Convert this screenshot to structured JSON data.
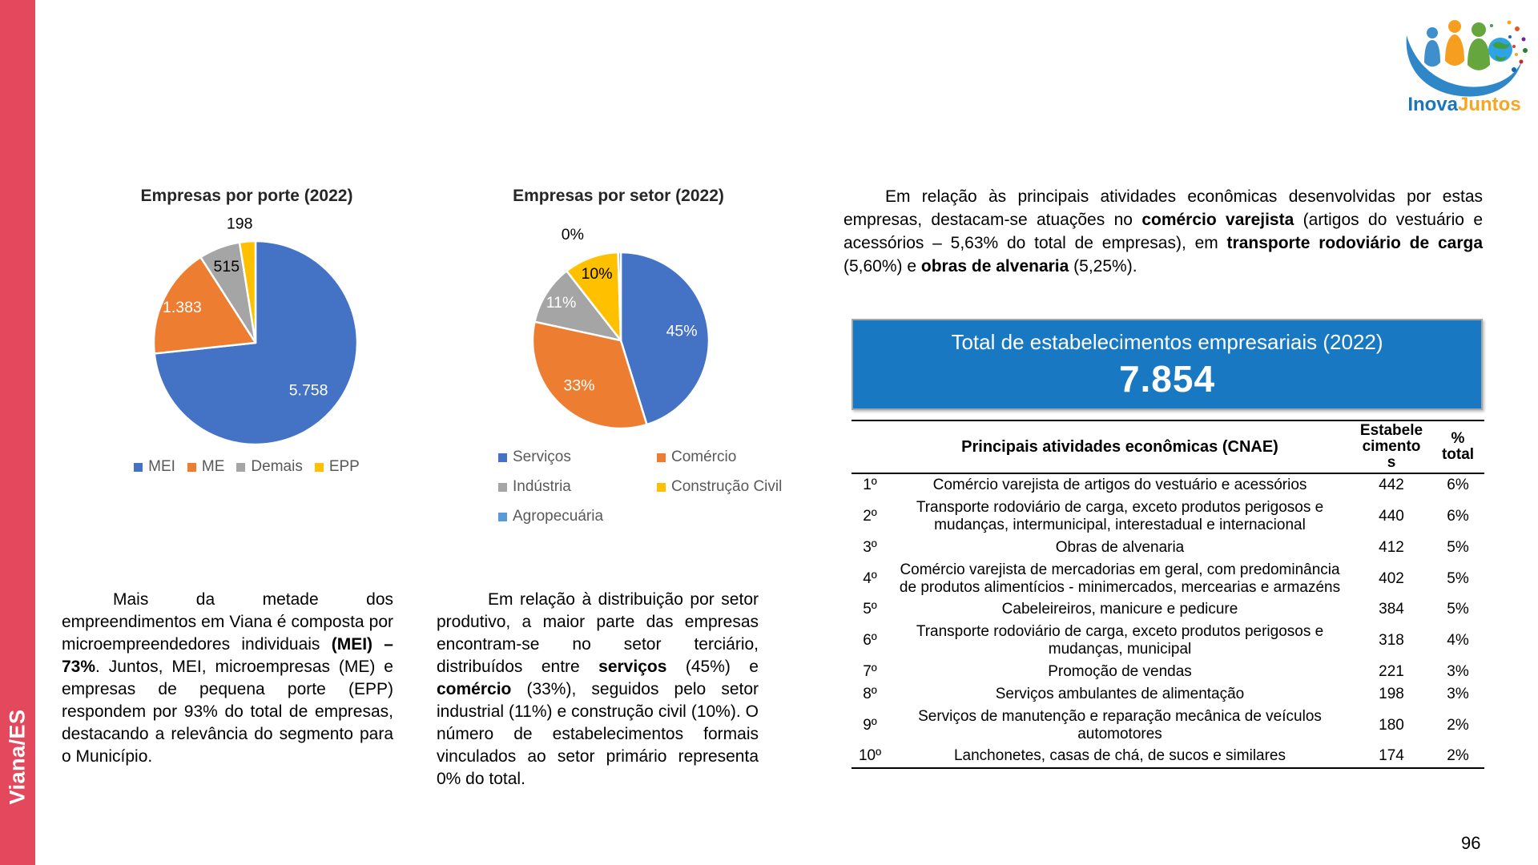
{
  "sidebar": {
    "label": "Viana/ES",
    "color": "#E4485C"
  },
  "logo": {
    "inova": "Inova",
    "juntos": "Juntos"
  },
  "paragraphs": {
    "left": [
      {
        "t": "Mais da metade dos empreendimentos em Viana é composta por microempreendedores individuais "
      },
      {
        "t": "(MEI) – 73%",
        "b": true
      },
      {
        "t": ". Juntos, MEI, microempresas (ME) e empresas de pequena porte (EPP) respondem por 93% do total de empresas, destacando a relevância do segmento para o Município."
      }
    ],
    "middle": [
      {
        "t": "Em relação à distribuição por setor produtivo, a maior parte das empresas encontram-se no setor terciário, distribuídos entre "
      },
      {
        "t": "serviços",
        "b": true
      },
      {
        "t": " (45%) e "
      },
      {
        "t": "comércio",
        "b": true
      },
      {
        "t": " (33%), seguidos pelo setor industrial (11%) e construção civil (10%). O número de estabelecimentos formais vinculados ao setor primário representa 0% do total."
      }
    ],
    "right": [
      {
        "t": "Em relação às principais atividades econômicas desenvolvidas por estas empresas, destacam-se atuações no "
      },
      {
        "t": "comércio varejista",
        "b": true
      },
      {
        "t": " (artigos do vestuário e acessórios – 5,63% do total de empresas), em "
      },
      {
        "t": "transporte rodoviário de carga",
        "b": true
      },
      {
        "t": " (5,60%) e "
      },
      {
        "t": "obras de alvenaria",
        "b": true
      },
      {
        "t": " (5,25%)."
      }
    ]
  },
  "banner": {
    "title": "Total de estabelecimentos empresariais (2022)",
    "value": "7.854",
    "color": "#1878C2"
  },
  "table": {
    "headers": {
      "rank": "",
      "activity": "Principais atividades econômicas (CNAE)",
      "estab": "Estabele\ncimento\ns",
      "pct": "%\ntotal"
    },
    "rows": [
      {
        "rank": "1º",
        "activity": "Comércio varejista de artigos do vestuário e acessórios",
        "estab": "442",
        "pct": "6%"
      },
      {
        "rank": "2º",
        "activity": "Transporte rodoviário de carga, exceto produtos perigosos e mudanças, intermunicipal, interestadual e internacional",
        "estab": "440",
        "pct": "6%"
      },
      {
        "rank": "3º",
        "activity": "Obras de alvenaria",
        "estab": "412",
        "pct": "5%"
      },
      {
        "rank": "4º",
        "activity": "Comércio varejista de mercadorias em geral, com predominância de produtos alimentícios - minimercados, mercearias e armazéns",
        "estab": "402",
        "pct": "5%"
      },
      {
        "rank": "5º",
        "activity": "Cabeleireiros, manicure e pedicure",
        "estab": "384",
        "pct": "5%"
      },
      {
        "rank": "6º",
        "activity": "Transporte rodoviário de carga, exceto produtos perigosos e mudanças, municipal",
        "estab": "318",
        "pct": "4%"
      },
      {
        "rank": "7º",
        "activity": "Promoção de vendas",
        "estab": "221",
        "pct": "3%"
      },
      {
        "rank": "8º",
        "activity": "Serviços ambulantes de alimentação",
        "estab": "198",
        "pct": "3%"
      },
      {
        "rank": "9º",
        "activity": "Serviços de manutenção e reparação mecânica de veículos automotores",
        "estab": "180",
        "pct": "2%"
      },
      {
        "rank": "10º",
        "activity": "Lanchonetes, casas de chá, de sucos e similares",
        "estab": "174",
        "pct": "2%"
      }
    ]
  },
  "page_number": "96",
  "chart_data": [
    {
      "type": "pie",
      "title": "Empresas por porte (2022)",
      "categories": [
        "MEI",
        "ME",
        "Demais",
        "EPP"
      ],
      "values": [
        5758,
        1383,
        515,
        198
      ],
      "labels": [
        "5.758",
        "1.383",
        "515",
        "198"
      ],
      "colors": [
        "#4472C4",
        "#ED7D31",
        "#A5A5A5",
        "#FFC000"
      ],
      "label_colors": [
        "#ffffff",
        "#ffffff",
        "#000000",
        "#000000"
      ],
      "total": 7854,
      "legend_position": "bottom"
    },
    {
      "type": "pie",
      "title": "Empresas por setor (2022)",
      "categories": [
        "Serviços",
        "Comércio",
        "Indústria",
        "Construção Civil",
        "Agropecuária"
      ],
      "values": [
        45,
        33,
        11,
        10,
        0
      ],
      "unit": "%",
      "labels": [
        "45%",
        "33%",
        "11%",
        "10%",
        "0%"
      ],
      "colors": [
        "#4472C4",
        "#ED7D31",
        "#A5A5A5",
        "#FFC000",
        "#5B9BD5"
      ],
      "label_colors": [
        "#ffffff",
        "#ffffff",
        "#ffffff",
        "#000000",
        "#000000"
      ],
      "legend_position": "bottom"
    }
  ]
}
